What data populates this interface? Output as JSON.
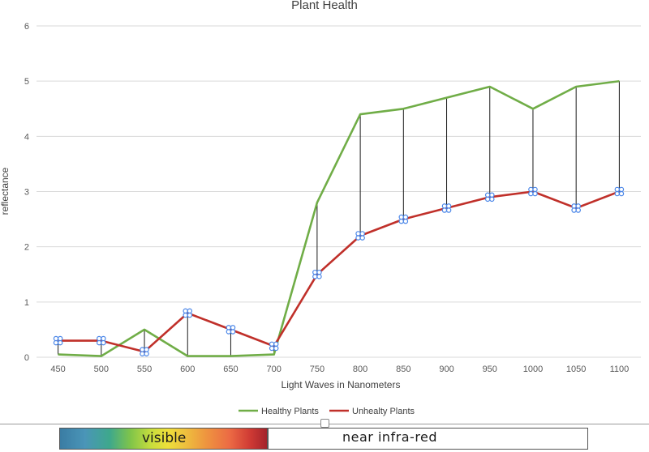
{
  "chart_data": {
    "type": "line",
    "title": "Plant Health",
    "xlabel": "Light Waves in Nanometers",
    "ylabel": "reflectance",
    "categories": [
      "450",
      "500",
      "550",
      "600",
      "650",
      "700",
      "750",
      "800",
      "850",
      "900",
      "950",
      "1000",
      "1050",
      "1100"
    ],
    "ylim": [
      0,
      6
    ],
    "yticks": [
      0,
      1,
      2,
      3,
      4,
      5,
      6
    ],
    "grid": true,
    "legend_position": "bottom",
    "series": [
      {
        "name": "Healthy Plants",
        "color": "#70AD47",
        "values": [
          0.05,
          0.02,
          0.5,
          0.02,
          0.02,
          0.05,
          2.8,
          4.4,
          4.5,
          4.7,
          4.9,
          4.5,
          4.9,
          5.0
        ]
      },
      {
        "name": "Unhealty Plants",
        "color": "#C0302A",
        "values": [
          0.3,
          0.3,
          0.1,
          0.8,
          0.5,
          0.2,
          1.5,
          2.2,
          2.5,
          2.7,
          2.9,
          3.0,
          2.7,
          3.0
        ]
      }
    ],
    "drop_lines": true,
    "marker_icon": "cluster-marker-icon",
    "marker_color": "#4A86E8"
  },
  "spectrum": {
    "visible_label": "visible",
    "nir_label": "near infra-red"
  }
}
